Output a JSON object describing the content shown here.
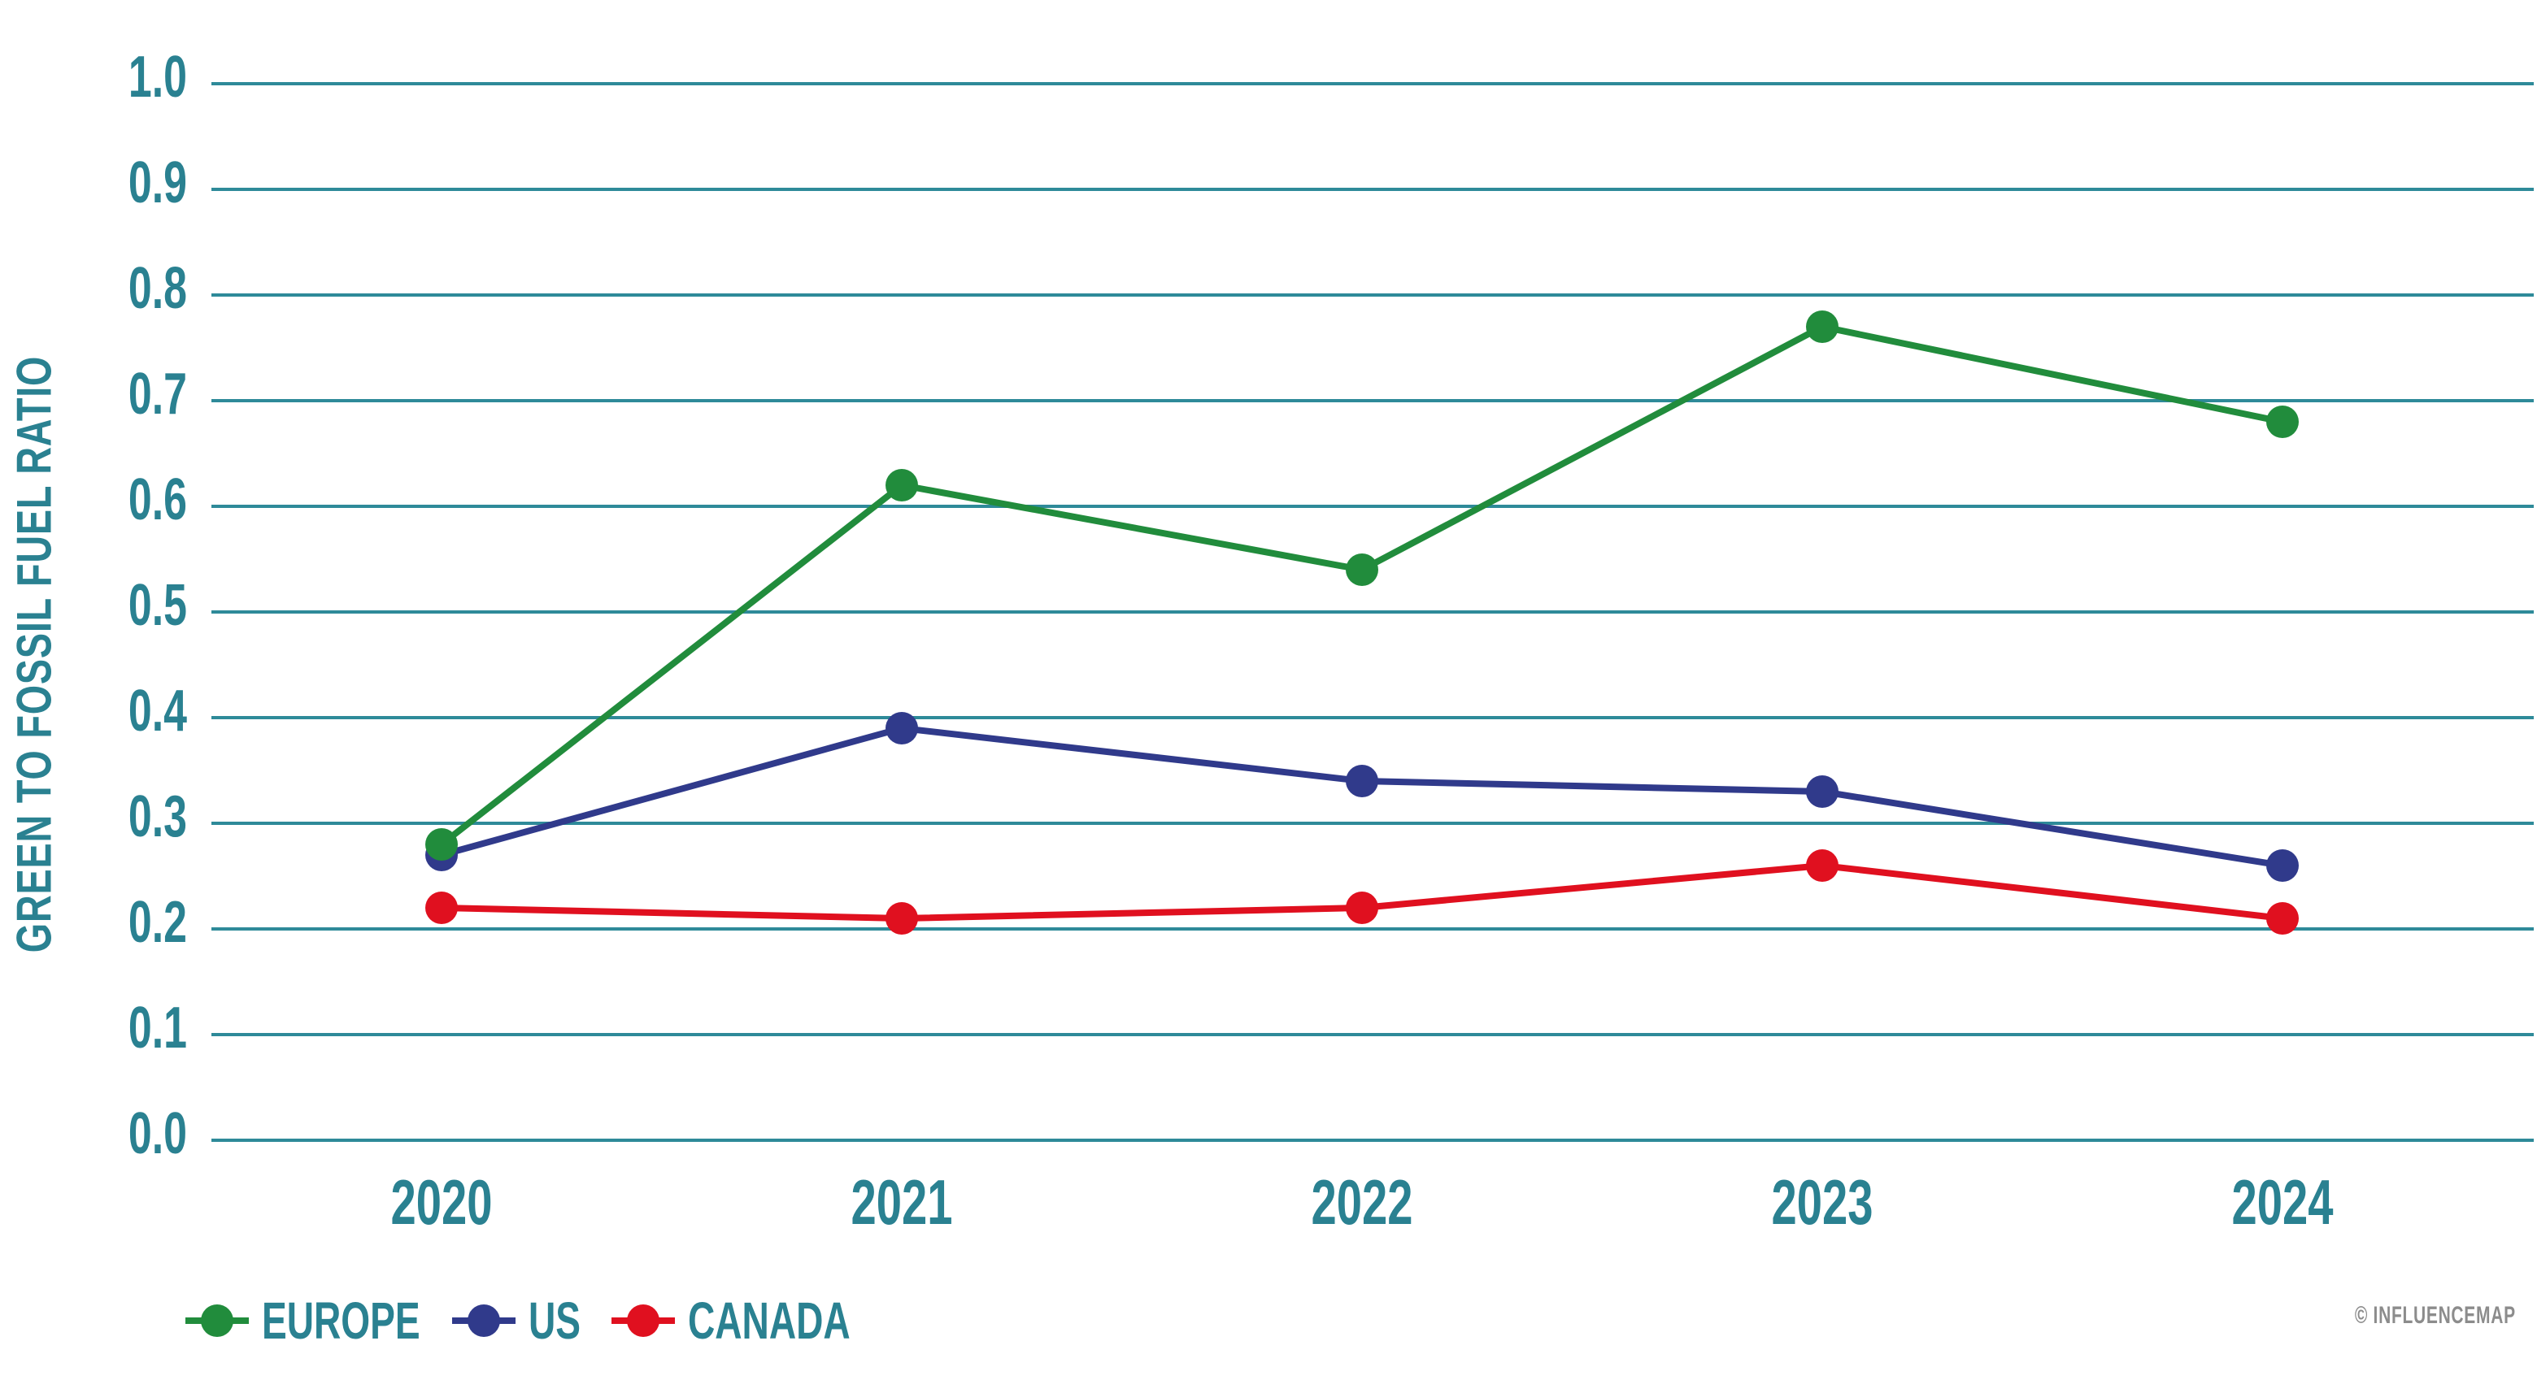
{
  "chart_data": {
    "type": "line",
    "categories": [
      "2020",
      "2021",
      "2022",
      "2023",
      "2024"
    ],
    "series": [
      {
        "name": "EUROPE",
        "color": "#218C3C",
        "values": [
          0.28,
          0.62,
          0.54,
          0.77,
          0.68
        ]
      },
      {
        "name": "US",
        "color": "#303A8B",
        "values": [
          0.27,
          0.39,
          0.34,
          0.33,
          0.26
        ]
      },
      {
        "name": "CANADA",
        "color": "#E0101F",
        "values": [
          0.22,
          0.21,
          0.22,
          0.26,
          0.21
        ]
      }
    ],
    "ylabel": "GREEN TO FOSSIL FUEL RATIO",
    "xlabel": "",
    "ylim": [
      0.0,
      1.0
    ],
    "ytick_step": 0.1,
    "yticks": [
      "0.0",
      "0.1",
      "0.2",
      "0.3",
      "0.4",
      "0.5",
      "0.6",
      "0.7",
      "0.8",
      "0.9",
      "1.0"
    ],
    "grid": "horizontal",
    "legend_position": "bottom-left"
  },
  "colors": {
    "axis_text": "#2A8191",
    "gridline": "#2E8A99",
    "watermark": "#8C8C8C",
    "background": "#FFFFFF"
  },
  "watermark": {
    "text": "© INFLUENCEMAP"
  }
}
